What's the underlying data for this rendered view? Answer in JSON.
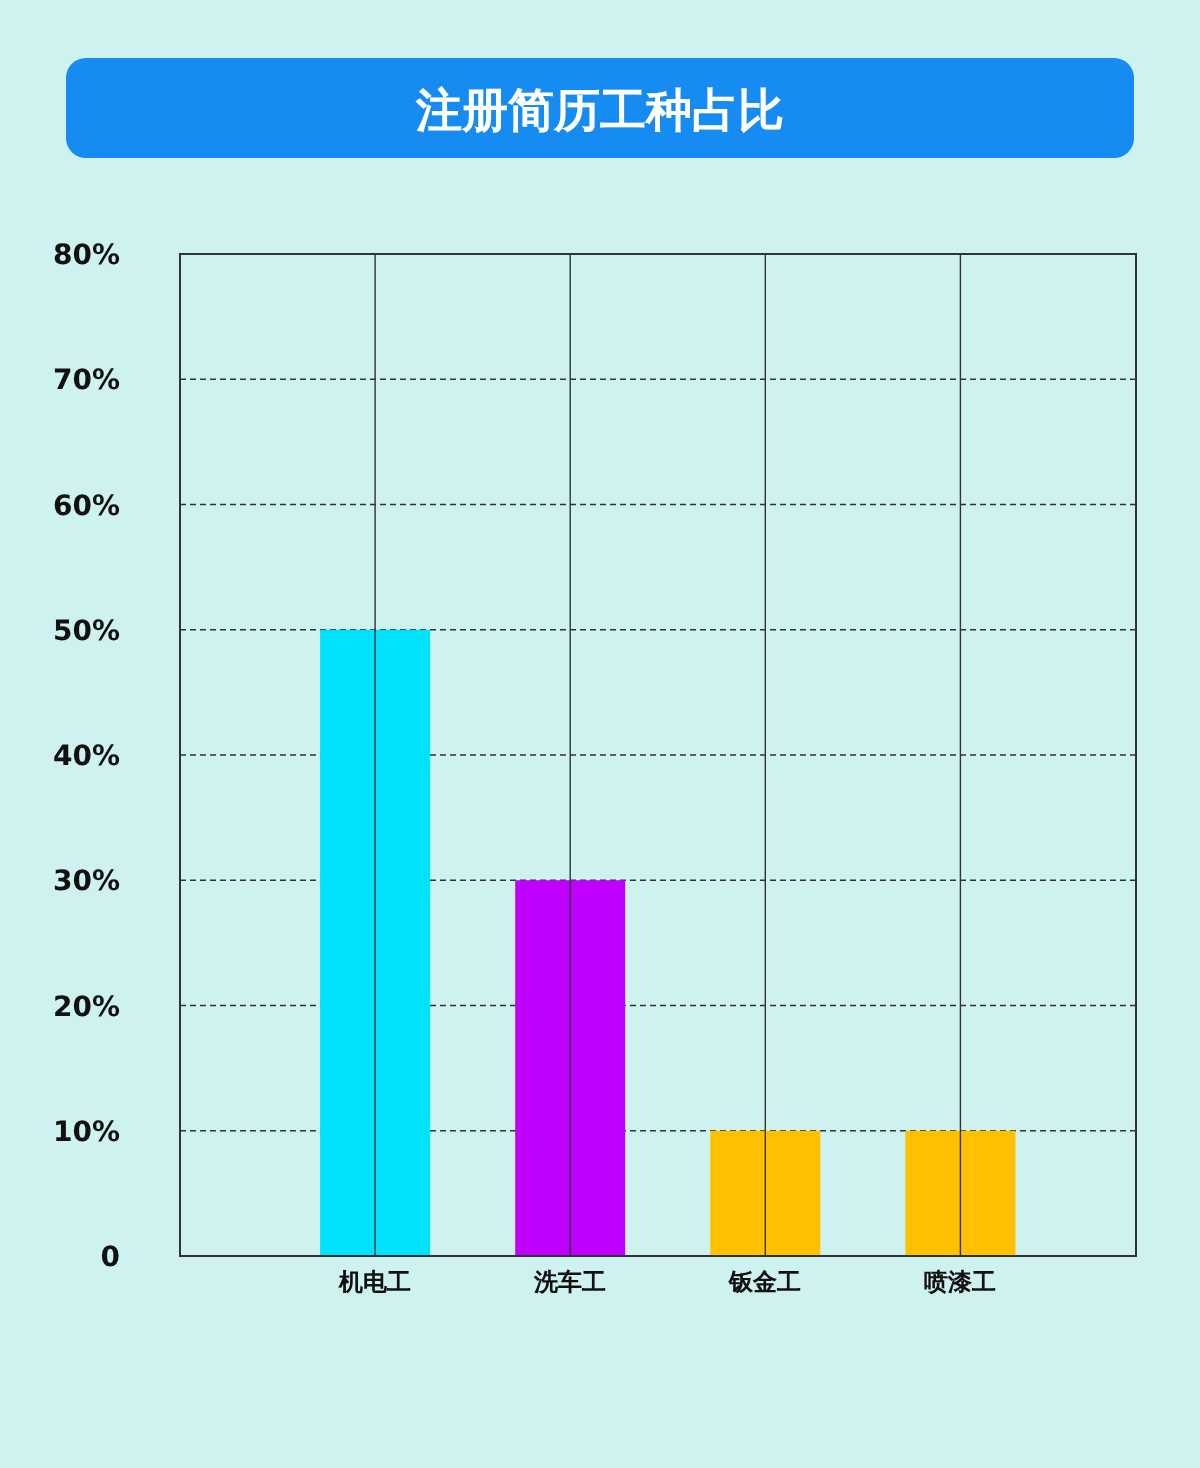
{
  "chart_data": {
    "type": "bar",
    "title": "注册简历工种占比",
    "categories": [
      "机电工",
      "洗车工",
      "钣金工",
      "喷漆工"
    ],
    "values": [
      50,
      30,
      10,
      10
    ],
    "colors": [
      "#00e1fb",
      "#c000ff",
      "#ffc000",
      "#ffc000"
    ],
    "ylim": [
      0,
      80
    ],
    "yticks": [
      {
        "value": 0,
        "label": "0"
      },
      {
        "value": 10,
        "label": "10%"
      },
      {
        "value": 20,
        "label": "20%"
      },
      {
        "value": 30,
        "label": "30%"
      },
      {
        "value": 40,
        "label": "40%"
      },
      {
        "value": 50,
        "label": "50%"
      },
      {
        "value": 60,
        "label": "60%"
      },
      {
        "value": 70,
        "label": "70%"
      },
      {
        "value": 80,
        "label": "80%"
      }
    ],
    "grid": true
  }
}
